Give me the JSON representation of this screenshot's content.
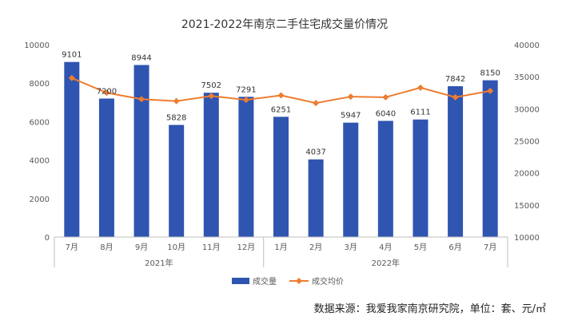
{
  "chart_data": {
    "type": "bar+line",
    "title": "2021-2022年南京二手住宅成交量价情况",
    "categories": [
      "7月",
      "8月",
      "9月",
      "10月",
      "11月",
      "12月",
      "1月",
      "2月",
      "3月",
      "4月",
      "5月",
      "6月",
      "7月"
    ],
    "year_groups": [
      {
        "label": "2021年",
        "start": 0,
        "end": 5
      },
      {
        "label": "2022年",
        "start": 6,
        "end": 12
      }
    ],
    "series": [
      {
        "name": "成交量",
        "type": "bar",
        "axis": "left",
        "color": "#2f55b0",
        "values": [
          9101,
          7200,
          8944,
          5828,
          7502,
          7291,
          6251,
          4037,
          5947,
          6040,
          6111,
          7842,
          8150
        ],
        "labels": [
          "9101",
          "7200",
          "8944",
          "5828",
          "7502",
          "7291",
          "6251",
          "4037",
          "5947",
          "6040",
          "6111",
          "7842",
          "8150"
        ]
      },
      {
        "name": "成交均价",
        "type": "line",
        "axis": "right",
        "color": "#ed7d31",
        "values": [
          34800,
          32500,
          31500,
          31200,
          32000,
          31400,
          32100,
          30900,
          31900,
          31800,
          33300,
          31800,
          32800
        ]
      }
    ],
    "y_left": {
      "min": 0,
      "max": 10000,
      "ticks": [
        0,
        2000,
        4000,
        6000,
        8000,
        10000
      ]
    },
    "y_right": {
      "min": 10000,
      "max": 40000,
      "ticks": [
        10000,
        15000,
        20000,
        25000,
        30000,
        35000,
        40000
      ]
    },
    "grid": false,
    "legend_position": "bottom"
  },
  "source_note": "数据来源：我爱我家南京研究院，单位：套、元/㎡"
}
